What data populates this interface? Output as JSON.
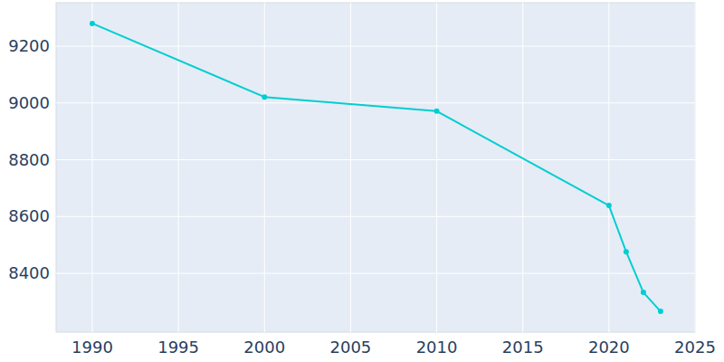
{
  "chart_data": {
    "type": "line",
    "x": [
      1990,
      2000,
      2010,
      2020,
      2021,
      2022,
      2023
    ],
    "values": [
      9280,
      9021,
      8971,
      8639,
      8476,
      8333,
      8266
    ],
    "color": "#00ced1",
    "marker": "circle",
    "xlim": [
      1987.9,
      2025
    ],
    "xticks": [
      1990,
      1995,
      2000,
      2005,
      2010,
      2015,
      2020,
      2025
    ],
    "ylim": [
      8193,
      9353
    ],
    "yticks": [
      8400,
      8600,
      8800,
      9000,
      9200
    ],
    "grid": true
  }
}
